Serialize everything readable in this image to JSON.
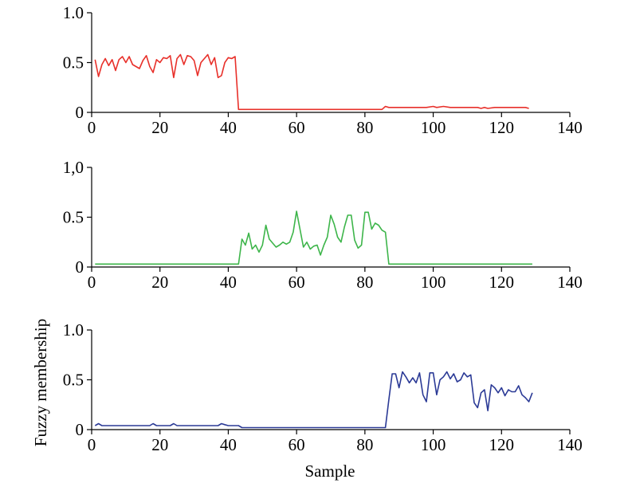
{
  "chart_data": [
    {
      "type": "line",
      "xlabel": "",
      "ylabel": "",
      "xlim": [
        0,
        140
      ],
      "ylim": [
        0,
        1.0
      ],
      "xticks": [
        0,
        20,
        40,
        60,
        80,
        100,
        120,
        140
      ],
      "yticks": [
        0,
        0.5,
        1.0
      ],
      "ytick_labels": [
        "0",
        "0.5",
        "1.0"
      ],
      "grid": false,
      "series": [
        {
          "color": "#e8302a",
          "x": [
            1,
            2,
            3,
            4,
            5,
            6,
            7,
            8,
            9,
            10,
            11,
            12,
            13,
            14,
            15,
            16,
            17,
            18,
            19,
            20,
            21,
            22,
            23,
            24,
            25,
            26,
            27,
            28,
            29,
            30,
            31,
            32,
            33,
            34,
            35,
            36,
            37,
            38,
            39,
            40,
            41,
            42,
            43,
            44,
            50,
            60,
            70,
            80,
            85,
            86,
            87,
            90,
            95,
            98,
            100,
            101,
            103,
            105,
            108,
            110,
            112,
            113,
            114,
            115,
            116,
            118,
            120,
            122,
            125,
            127,
            128
          ],
          "y": [
            0.53,
            0.36,
            0.48,
            0.54,
            0.47,
            0.53,
            0.42,
            0.53,
            0.56,
            0.5,
            0.56,
            0.48,
            0.46,
            0.44,
            0.52,
            0.57,
            0.46,
            0.4,
            0.53,
            0.5,
            0.55,
            0.54,
            0.57,
            0.35,
            0.54,
            0.58,
            0.48,
            0.57,
            0.56,
            0.52,
            0.37,
            0.5,
            0.54,
            0.58,
            0.48,
            0.55,
            0.35,
            0.37,
            0.5,
            0.55,
            0.54,
            0.56,
            0.03,
            0.03,
            0.03,
            0.03,
            0.03,
            0.03,
            0.03,
            0.06,
            0.05,
            0.05,
            0.05,
            0.05,
            0.06,
            0.05,
            0.06,
            0.05,
            0.05,
            0.05,
            0.05,
            0.05,
            0.04,
            0.05,
            0.04,
            0.05,
            0.05,
            0.05,
            0.05,
            0.05,
            0.04
          ]
        }
      ]
    },
    {
      "type": "line",
      "xlabel": "",
      "ylabel": "",
      "xlim": [
        0,
        140
      ],
      "ylim": [
        0,
        1.0
      ],
      "xticks": [
        0,
        20,
        40,
        60,
        80,
        100,
        120,
        140
      ],
      "yticks": [
        0,
        0.5,
        1.0
      ],
      "ytick_labels": [
        "0",
        "0.5",
        "1,0"
      ],
      "grid": false,
      "series": [
        {
          "color": "#3db54a",
          "x": [
            1,
            10,
            20,
            30,
            40,
            42,
            43,
            44,
            45,
            46,
            47,
            48,
            49,
            50,
            51,
            52,
            53,
            54,
            55,
            56,
            57,
            58,
            59,
            60,
            61,
            62,
            63,
            64,
            65,
            66,
            67,
            68,
            69,
            70,
            71,
            72,
            73,
            74,
            75,
            76,
            77,
            78,
            79,
            80,
            81,
            82,
            83,
            84,
            85,
            86,
            87,
            88,
            100,
            110,
            120,
            129
          ],
          "y": [
            0.03,
            0.03,
            0.03,
            0.03,
            0.03,
            0.03,
            0.03,
            0.28,
            0.22,
            0.34,
            0.18,
            0.22,
            0.15,
            0.22,
            0.42,
            0.28,
            0.24,
            0.2,
            0.22,
            0.25,
            0.23,
            0.25,
            0.35,
            0.56,
            0.38,
            0.2,
            0.25,
            0.18,
            0.21,
            0.22,
            0.12,
            0.22,
            0.3,
            0.52,
            0.43,
            0.3,
            0.25,
            0.4,
            0.52,
            0.52,
            0.27,
            0.19,
            0.22,
            0.55,
            0.55,
            0.38,
            0.44,
            0.42,
            0.37,
            0.35,
            0.03,
            0.03,
            0.03,
            0.03,
            0.03,
            0.03
          ]
        }
      ]
    },
    {
      "type": "line",
      "xlabel": "Sample",
      "ylabel": "Fuzzy membership",
      "xlim": [
        0,
        140
      ],
      "ylim": [
        0,
        1.0
      ],
      "xticks": [
        0,
        20,
        40,
        60,
        80,
        100,
        120,
        140
      ],
      "yticks": [
        0,
        0.5,
        1.0
      ],
      "ytick_labels": [
        "0",
        "0.5",
        "1.0"
      ],
      "grid": false,
      "series": [
        {
          "color": "#2b3a96",
          "x": [
            1,
            2,
            3,
            10,
            17,
            18,
            19,
            22,
            23,
            24,
            25,
            30,
            37,
            38,
            39,
            40,
            43,
            44,
            50,
            60,
            70,
            80,
            85,
            86,
            87,
            88,
            89,
            90,
            91,
            92,
            93,
            94,
            95,
            96,
            97,
            98,
            99,
            100,
            101,
            102,
            103,
            104,
            105,
            106,
            107,
            108,
            109,
            110,
            111,
            112,
            113,
            114,
            115,
            116,
            117,
            118,
            119,
            120,
            121,
            122,
            123,
            124,
            125,
            126,
            127,
            128,
            129
          ],
          "y": [
            0.04,
            0.06,
            0.04,
            0.04,
            0.04,
            0.06,
            0.04,
            0.04,
            0.04,
            0.06,
            0.04,
            0.04,
            0.04,
            0.06,
            0.05,
            0.04,
            0.04,
            0.02,
            0.02,
            0.02,
            0.02,
            0.02,
            0.02,
            0.02,
            0.3,
            0.56,
            0.56,
            0.42,
            0.58,
            0.53,
            0.47,
            0.52,
            0.47,
            0.57,
            0.35,
            0.28,
            0.57,
            0.57,
            0.35,
            0.5,
            0.53,
            0.58,
            0.51,
            0.56,
            0.48,
            0.5,
            0.57,
            0.53,
            0.55,
            0.27,
            0.22,
            0.37,
            0.4,
            0.19,
            0.45,
            0.42,
            0.37,
            0.42,
            0.34,
            0.4,
            0.38,
            0.38,
            0.44,
            0.35,
            0.32,
            0.28,
            0.37
          ]
        }
      ]
    }
  ],
  "colors": {
    "axis": "#000000"
  }
}
